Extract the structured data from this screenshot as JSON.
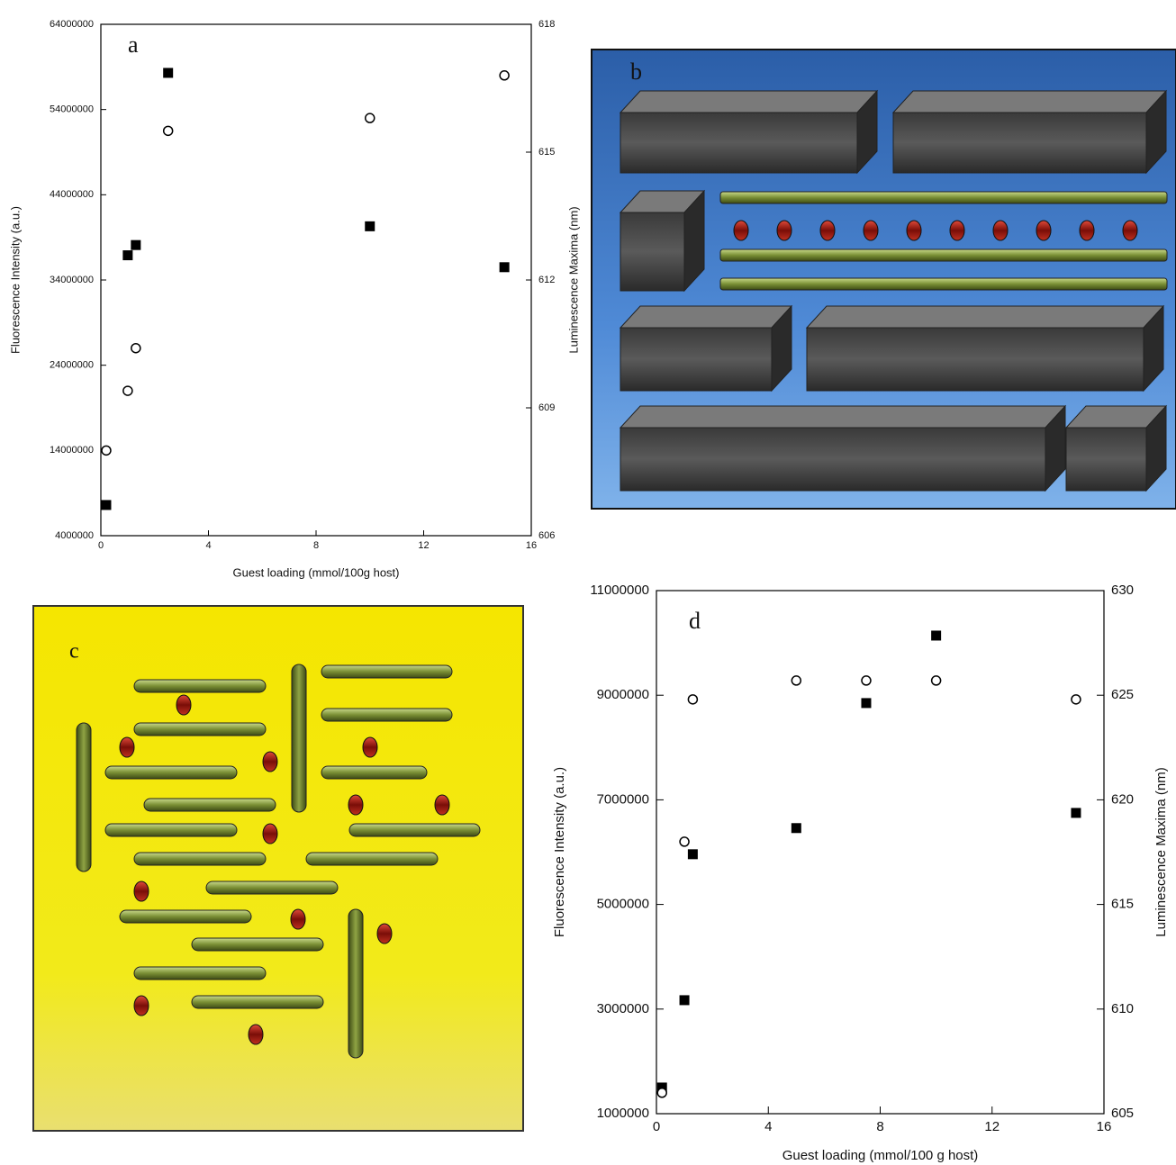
{
  "chart_data": [
    {
      "type": "scatter",
      "label": "a",
      "x_label": "Guest loading (mmol/100g host)",
      "y_label": "Fluorescence Intensity (a.u.)",
      "y2_label": "Luminescence Maxima (nm)",
      "x": [
        0.2,
        1.0,
        1.3,
        2.5,
        10,
        15
      ],
      "xlim": [
        0,
        16
      ],
      "xticks": [
        0,
        4,
        8,
        12,
        16
      ],
      "ylim": [
        4000000,
        64000000
      ],
      "yticks": [
        4000000,
        14000000,
        24000000,
        34000000,
        44000000,
        54000000,
        64000000
      ],
      "y2lim": [
        606,
        618
      ],
      "y2ticks": [
        606,
        609,
        612,
        615,
        618
      ],
      "series": [
        {
          "marker": "square",
          "color": "#000000",
          "values": [
            7600000,
            36900000,
            38100000,
            58300000,
            40300000,
            35500000
          ]
        },
        {
          "marker": "circle",
          "axis": "y2",
          "color": "#000000",
          "values": [
            608.0,
            609.4,
            610.4,
            615.5,
            615.8,
            616.8
          ]
        }
      ]
    },
    {
      "type": "scatter",
      "label": "d",
      "x_label": "Guest loading (mmol/100 g host)",
      "y_label": "Fluorescence Intensity (a.u.)",
      "y2_label": "Luminescence Maxima (nm)",
      "x": [
        0.2,
        1.0,
        1.3,
        5,
        7.5,
        10,
        15
      ],
      "xlim": [
        0,
        16
      ],
      "xticks": [
        0,
        4,
        8,
        12,
        16
      ],
      "ylim": [
        1000000,
        11000000
      ],
      "yticks": [
        1000000,
        3000000,
        5000000,
        7000000,
        9000000,
        11000000
      ],
      "y2lim": [
        605,
        630
      ],
      "y2ticks": [
        605,
        610,
        615,
        620,
        625,
        630
      ],
      "series": [
        {
          "marker": "square",
          "color": "#000000",
          "values": [
            1500000,
            3170000,
            5960000,
            6460000,
            8850000,
            10140000,
            6750000
          ]
        },
        {
          "marker": "circle",
          "axis": "y2",
          "color": "#000000",
          "values": [
            606.0,
            618.0,
            624.8,
            625.7,
            625.7,
            625.7,
            624.8
          ]
        }
      ]
    }
  ],
  "illustrations": [
    {
      "label": "b"
    },
    {
      "label": "c"
    }
  ]
}
